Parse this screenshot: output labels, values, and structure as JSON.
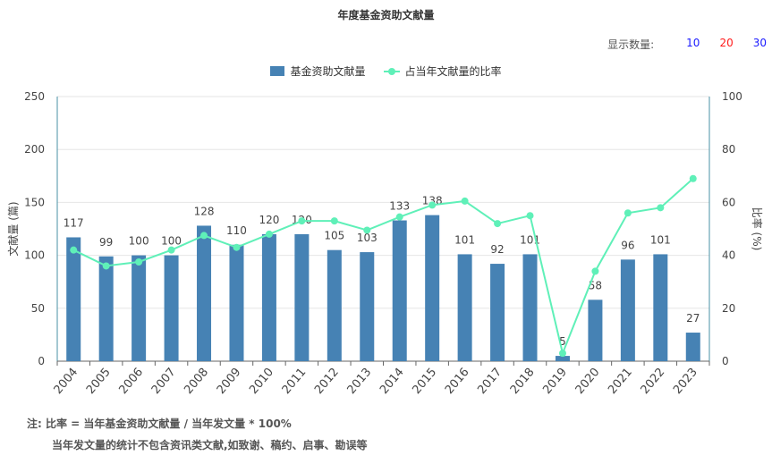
{
  "title": "年度基金资助文献量",
  "display_count": {
    "label": "显示数量:",
    "options": [
      {
        "text": "10",
        "color": "#1a1aff"
      },
      {
        "text": "20",
        "color": "#ff1a1a"
      },
      {
        "text": "30",
        "color": "#1a1aff"
      }
    ]
  },
  "legend": {
    "bar": "基金资助文献量",
    "line": "占当年文献量的比率"
  },
  "notes": {
    "line1": "注:   比率 = 当年基金资助文献量 / 当年发文量 * 100%",
    "line2": "当年发文量的统计不包含资讯类文献,如致谢、稿约、启事、勘误等"
  },
  "colors": {
    "bar": "#4682b4",
    "line": "#5ff0b8",
    "axis": "#4a90a4",
    "grid": "#e6e6e6"
  },
  "chart_data": {
    "type": "bar",
    "categories": [
      "2004",
      "2005",
      "2006",
      "2007",
      "2008",
      "2009",
      "2010",
      "2011",
      "2012",
      "2013",
      "2014",
      "2015",
      "2016",
      "2017",
      "2018",
      "2019",
      "2020",
      "2021",
      "2022",
      "2023"
    ],
    "series": [
      {
        "name": "基金资助文献量",
        "type": "bar",
        "axis": "left",
        "values": [
          117,
          99,
          100,
          100,
          128,
          110,
          120,
          120,
          105,
          103,
          133,
          138,
          101,
          92,
          101,
          5,
          58,
          96,
          101,
          27
        ]
      },
      {
        "name": "占当年文献量的比率",
        "type": "line",
        "axis": "right",
        "values": [
          42,
          36,
          37.5,
          42,
          47.5,
          43,
          48,
          53,
          53,
          49.5,
          54.5,
          59,
          60.5,
          52,
          55,
          3,
          34,
          56,
          58,
          69
        ]
      }
    ],
    "ylabel": "文献量 (篇)",
    "y2label": "比率 (%)",
    "ylim": [
      0,
      250
    ],
    "y2lim": [
      0,
      100
    ],
    "yticks": [
      0,
      50,
      100,
      150,
      200,
      250
    ],
    "y2ticks": [
      0,
      20,
      40,
      60,
      80,
      100
    ],
    "grid": true,
    "legend_position": "top"
  }
}
